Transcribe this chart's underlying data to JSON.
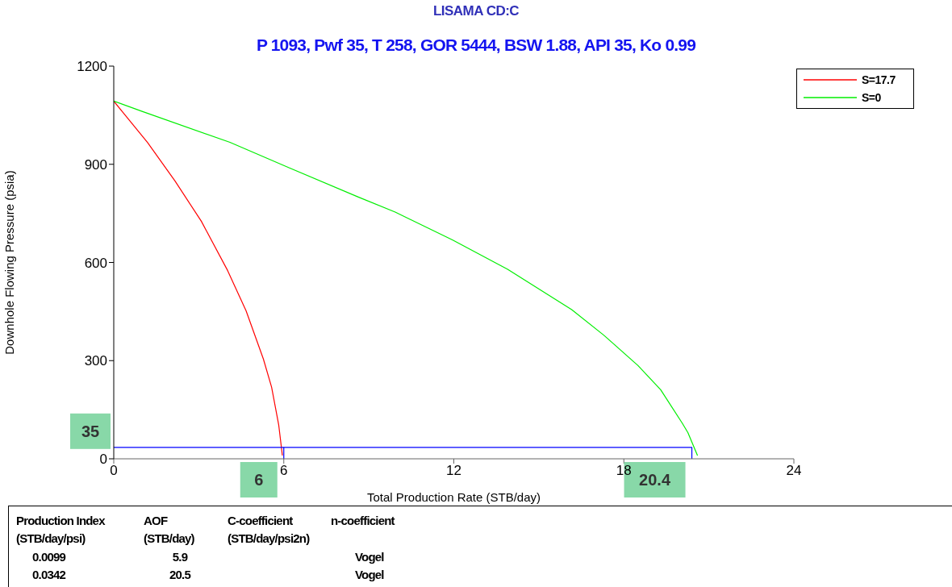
{
  "chart_data": {
    "type": "line",
    "title": "LISAMA CD:C",
    "subtitle": "P 1093, Pwf 35, T 258, GOR 5444, BSW 1.88, API 35, Ko 0.99",
    "xlabel": "Total Production Rate (STB/day)",
    "ylabel": "Downhole Flowing Pressure (psia)",
    "xlim": [
      0,
      24
    ],
    "xticks": [
      0,
      6,
      12,
      18,
      24
    ],
    "ylim": [
      0,
      1200
    ],
    "yticks": [
      0,
      300,
      600,
      900,
      1200
    ],
    "grid": false,
    "legend": "top right",
    "marker": "none",
    "line_style": "solid",
    "series": [
      {
        "name": "S=17.7",
        "color": "#ff0000",
        "x": [
          0,
          0.3,
          1.19,
          2.16,
          3.09,
          4.02,
          4.67,
          5.28,
          5.57,
          5.82,
          5.95
        ],
        "values": [
          1093,
          1061,
          967,
          849,
          726,
          575,
          452,
          305,
          219,
          104,
          10
        ]
      },
      {
        "name": "S=0",
        "color": "#00ee00",
        "x": [
          0,
          1.02,
          4.1,
          6.2,
          8.63,
          9.93,
          11.95,
          13.9,
          16.16,
          17.29,
          18.5,
          19.3,
          20.06,
          20.26,
          20.6
        ],
        "values": [
          1093,
          1061,
          967,
          889,
          800,
          754,
          669,
          579,
          456,
          378,
          285,
          211,
          109,
          80,
          10
        ]
      },
      {
        "color": "#0000ff",
        "x": [
          0,
          20.4,
          20.4
        ],
        "values": [
          35,
          35,
          0
        ]
      },
      {
        "color": "#0000ff",
        "x": [
          6,
          6
        ],
        "values": [
          35,
          0
        ]
      }
    ],
    "annotations": [
      {
        "text": "35",
        "x": 0,
        "y": 35
      },
      {
        "text": "6",
        "x": 6,
        "y": 0
      },
      {
        "text": "20.4",
        "x": 20.4,
        "y": 0
      },
      "Production Index",
      "AOF",
      "C-coefficient",
      "n-coefficient",
      "(STB/day/psi)",
      "(STB/day)",
      "(STB/day/psi2n)",
      "0.0099",
      "5.9",
      "Vogel",
      "0.0342",
      "20.5",
      "Vogel"
    ]
  }
}
